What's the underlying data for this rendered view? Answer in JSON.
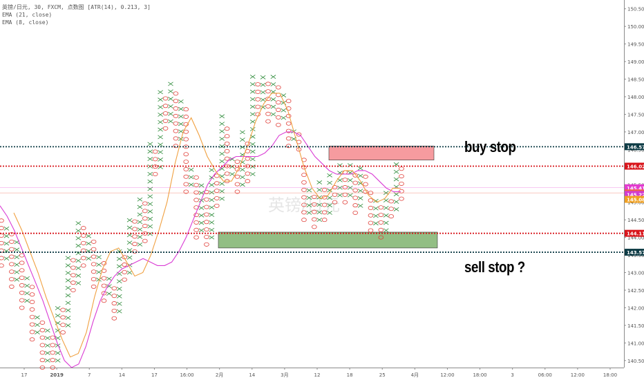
{
  "legend": {
    "symbol_line": "英镑/日元, 30, FXCM, 点数图 [ATR(14), 0.213, 3]",
    "ema21": "EMA (21, close)",
    "ema8": "EMA (8, close)"
  },
  "annotations": {
    "buy": "buy stop",
    "sell": "sell stop ?"
  },
  "watermark": "英镑/日元",
  "chart_data": {
    "type": "point-and-figure",
    "y_range": [
      140.3,
      150.75
    ],
    "y_ticks": [
      "150.500",
      "150.000",
      "149.500",
      "149.000",
      "148.500",
      "148.000",
      "147.500",
      "147.000",
      "146.500",
      "146.000",
      "145.500",
      "145.000",
      "144.500",
      "144.000",
      "143.500",
      "143.000",
      "142.500",
      "142.000",
      "141.500",
      "141.000",
      "140.500"
    ],
    "x_labels": [
      "17",
      "2019",
      "7",
      "14",
      "17",
      "16:00",
      "2月",
      "14",
      "3月",
      "12",
      "18",
      "25",
      "4月",
      "12:00",
      "18:00",
      "3",
      "06:00",
      "12:00",
      "18:00"
    ],
    "x_label_pos": [
      0,
      1,
      2,
      3,
      4,
      5,
      6,
      7,
      8,
      9,
      10,
      11,
      12,
      13,
      14,
      15,
      16,
      17,
      18
    ],
    "box_size": 0.213,
    "columns": [
      {
        "t": "O",
        "from": 144.5,
        "to": 143.2
      },
      {
        "t": "X",
        "from": 143.4,
        "to": 144.3
      },
      {
        "t": "O",
        "from": 144.1,
        "to": 142.6
      },
      {
        "t": "X",
        "from": 142.8,
        "to": 143.9
      },
      {
        "t": "O",
        "from": 143.7,
        "to": 142.0
      },
      {
        "t": "X",
        "from": 142.2,
        "to": 142.9
      },
      {
        "t": "O",
        "from": 142.7,
        "to": 141.1
      },
      {
        "t": "X",
        "from": 141.3,
        "to": 141.8
      },
      {
        "t": "O",
        "from": 141.6,
        "to": 140.3
      },
      {
        "t": "X",
        "from": 140.5,
        "to": 141.4
      },
      {
        "t": "O",
        "from": 141.2,
        "to": 140.3
      },
      {
        "t": "X",
        "from": 140.5,
        "to": 142.2
      },
      {
        "t": "O",
        "from": 142.0,
        "to": 141.3
      },
      {
        "t": "X",
        "from": 141.5,
        "to": 143.6
      },
      {
        "t": "O",
        "from": 143.4,
        "to": 142.5
      },
      {
        "t": "X",
        "from": 142.7,
        "to": 144.5
      },
      {
        "t": "O",
        "from": 144.3,
        "to": 143.2
      },
      {
        "t": "X",
        "from": 143.4,
        "to": 144.1
      },
      {
        "t": "O",
        "from": 143.9,
        "to": 142.6
      },
      {
        "t": "X",
        "from": 142.8,
        "to": 143.5
      },
      {
        "t": "O",
        "from": 143.3,
        "to": 142.2
      },
      {
        "t": "X",
        "from": 142.4,
        "to": 142.9
      },
      {
        "t": "O",
        "from": 142.7,
        "to": 141.7
      },
      {
        "t": "X",
        "from": 141.9,
        "to": 143.7
      },
      {
        "t": "O",
        "from": 143.5,
        "to": 142.8
      },
      {
        "t": "X",
        "from": 143.0,
        "to": 144.7
      },
      {
        "t": "O",
        "from": 144.5,
        "to": 143.6
      },
      {
        "t": "X",
        "from": 143.8,
        "to": 145.2
      },
      {
        "t": "O",
        "from": 145.0,
        "to": 143.9
      },
      {
        "t": "X",
        "from": 144.1,
        "to": 146.8
      },
      {
        "t": "O",
        "from": 146.6,
        "to": 145.8
      },
      {
        "t": "X",
        "from": 146.0,
        "to": 148.3
      },
      {
        "t": "O",
        "from": 148.1,
        "to": 147.1
      },
      {
        "t": "X",
        "from": 147.3,
        "to": 148.5
      },
      {
        "t": "O",
        "from": 148.3,
        "to": 146.6
      },
      {
        "t": "X",
        "from": 146.8,
        "to": 147.9
      },
      {
        "t": "O",
        "from": 147.7,
        "to": 145.3
      },
      {
        "t": "X",
        "from": 145.5,
        "to": 146.0
      },
      {
        "t": "O",
        "from": 145.8,
        "to": 144.0
      },
      {
        "t": "X",
        "from": 144.2,
        "to": 145.5
      },
      {
        "t": "O",
        "from": 145.3,
        "to": 143.8
      },
      {
        "t": "X",
        "from": 144.0,
        "to": 146.0
      },
      {
        "t": "O",
        "from": 145.8,
        "to": 144.9
      },
      {
        "t": "X",
        "from": 145.1,
        "to": 147.5
      },
      {
        "t": "O",
        "from": 147.3,
        "to": 145.6
      },
      {
        "t": "X",
        "from": 145.8,
        "to": 146.4
      },
      {
        "t": "O",
        "from": 146.2,
        "to": 145.3
      },
      {
        "t": "X",
        "from": 145.5,
        "to": 147.0
      },
      {
        "t": "O",
        "from": 146.8,
        "to": 145.6
      },
      {
        "t": "X",
        "from": 145.8,
        "to": 148.7
      },
      {
        "t": "O",
        "from": 148.5,
        "to": 147.5
      },
      {
        "t": "X",
        "from": 147.7,
        "to": 148.6
      },
      {
        "t": "O",
        "from": 148.4,
        "to": 147.3
      },
      {
        "t": "X",
        "from": 147.5,
        "to": 148.6
      },
      {
        "t": "O",
        "from": 148.4,
        "to": 147.2
      },
      {
        "t": "X",
        "from": 147.4,
        "to": 148.1
      },
      {
        "t": "O",
        "from": 147.9,
        "to": 146.6
      },
      {
        "t": "X",
        "from": 146.8,
        "to": 147.2
      },
      {
        "t": "O",
        "from": 147.0,
        "to": 146.5
      },
      {
        "t": "O",
        "from": 146.3,
        "to": 144.5
      },
      {
        "t": "X",
        "from": 144.7,
        "to": 145.5
      },
      {
        "t": "O",
        "from": 145.3,
        "to": 144.3
      },
      {
        "t": "X",
        "from": 144.5,
        "to": 145.6
      },
      {
        "t": "O",
        "from": 145.4,
        "to": 144.5
      },
      {
        "t": "X",
        "from": 144.7,
        "to": 145.8
      },
      {
        "t": "O",
        "from": 145.6,
        "to": 145.0
      },
      {
        "t": "X",
        "from": 145.2,
        "to": 146.1
      },
      {
        "t": "O",
        "from": 145.9,
        "to": 145.0
      },
      {
        "t": "X",
        "from": 145.2,
        "to": 146.1
      },
      {
        "t": "O",
        "from": 145.9,
        "to": 144.7
      },
      {
        "t": "X",
        "from": 144.9,
        "to": 146.1
      },
      {
        "t": "O",
        "from": 145.9,
        "to": 145.3
      },
      {
        "t": "O",
        "from": 145.3,
        "to": 144.2
      },
      {
        "t": "X",
        "from": 144.4,
        "to": 145.2
      },
      {
        "t": "O",
        "from": 145.0,
        "to": 144.0
      },
      {
        "t": "X",
        "from": 144.2,
        "to": 145.4
      },
      {
        "t": "O",
        "from": 145.2,
        "to": 144.6
      },
      {
        "t": "X",
        "from": 144.8,
        "to": 146.2
      },
      {
        "t": "O",
        "from": 146.0,
        "to": 145.1
      }
    ],
    "ema21": [
      144.9,
      144.6,
      144.2,
      143.7,
      143.2,
      142.7,
      142.2,
      141.6,
      141.0,
      140.5,
      140.3,
      140.4,
      140.9,
      141.6,
      142.2,
      142.6,
      142.9,
      143.1,
      143.2,
      143.3,
      143.4,
      143.3,
      143.2,
      143.2,
      143.3,
      143.6,
      144.0,
      144.5,
      145.0,
      145.5,
      145.8,
      146.0,
      146.2,
      146.3,
      146.3,
      146.3,
      146.3,
      146.4,
      146.6,
      146.9,
      147.0,
      147.0,
      146.9,
      146.6,
      146.3,
      146.1,
      145.9,
      145.8,
      145.8,
      145.8,
      145.9,
      145.9,
      145.8,
      145.6,
      145.4,
      145.3,
      145.3
    ],
    "ema8": [
      144.7,
      144.2,
      143.6,
      143.0,
      142.3,
      141.7,
      141.1,
      140.6,
      140.7,
      141.3,
      142.3,
      143.1,
      143.6,
      143.7,
      143.3,
      142.9,
      143.0,
      143.5,
      144.2,
      145.0,
      146.1,
      147.0,
      147.4,
      146.9,
      146.3,
      145.9,
      145.6,
      145.6,
      146.0,
      146.6,
      147.3,
      147.8,
      148.1,
      148.1,
      147.6,
      146.8,
      146.0,
      145.4,
      145.1,
      145.2,
      145.6,
      145.9,
      145.9,
      145.6,
      145.2,
      145.0,
      145.1,
      145.4,
      145.4
    ],
    "levels": [
      {
        "value": 146.579,
        "label": "146.579",
        "color": "#0d3b45"
      },
      {
        "value": 146.026,
        "label": "146.026",
        "color": "#d8141a"
      },
      {
        "value": 145.412,
        "label": "145.412",
        "color": "#e33bd0"
      },
      {
        "value": 145.266,
        "label": "145.266",
        "color": "#f06048"
      },
      {
        "value": 145.223,
        "label": "145.223",
        "color": "#d23bcf"
      },
      {
        "value": 145.082,
        "label": "145.082",
        "color": "#f0a020"
      },
      {
        "value": 144.117,
        "label": "144.117",
        "color": "#d8141a"
      },
      {
        "value": 143.579,
        "label": "143.579",
        "color": "#0d3b45"
      }
    ],
    "zones": [
      {
        "name": "buy",
        "from": 146.2,
        "to": 146.6,
        "color": "#f48a8e"
      },
      {
        "name": "sell",
        "from": 143.7,
        "to": 144.15,
        "color": "#7fb36e"
      }
    ],
    "colors": {
      "x": "#2e8b3a",
      "o": "#e0403a",
      "ema21": "#d93ad4",
      "ema8": "#f0a040"
    }
  }
}
